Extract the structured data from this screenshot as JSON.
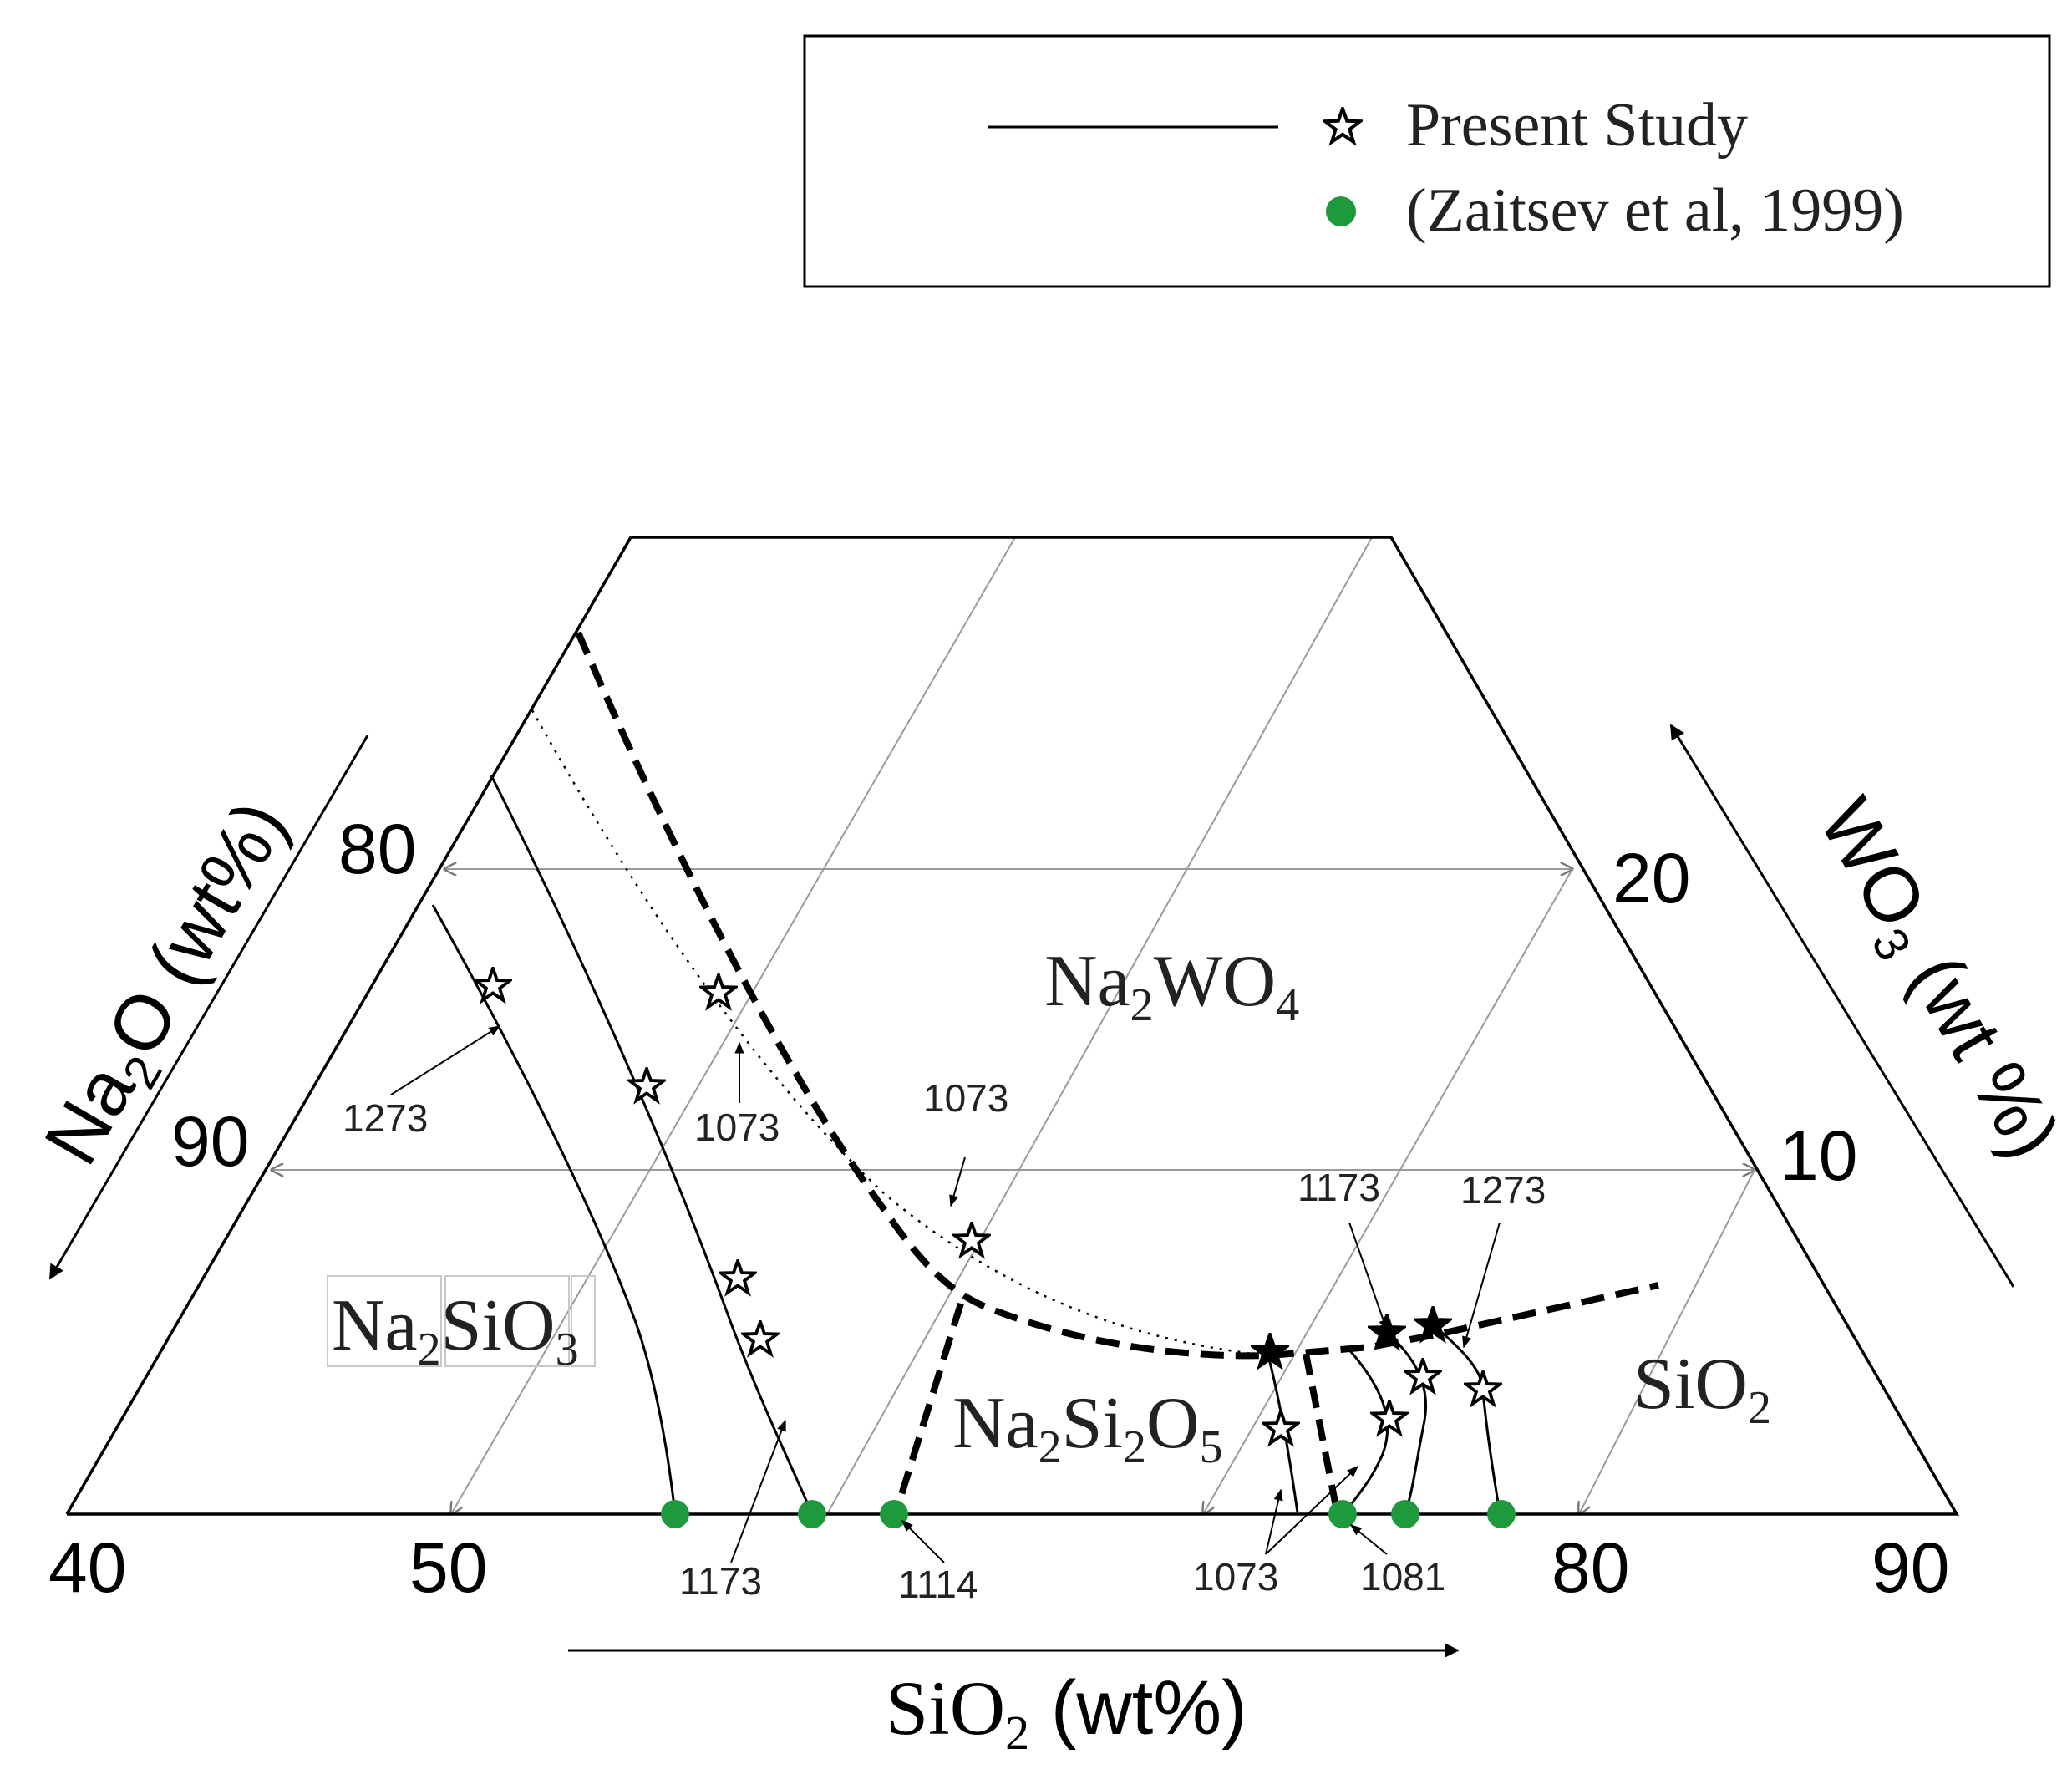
{
  "legend": {
    "present_study": "Present Study",
    "zaitsev": "(Zaitsev et al, 1999)",
    "colors": {
      "zaitsev_marker": "#1e9a3c",
      "line": "#000000",
      "grid": "#9a9a9a"
    }
  },
  "axes": {
    "bottom": {
      "label_main": "SiO",
      "label_sub": "2",
      "label_units": " (wt%)",
      "ticks": [
        "40",
        "50",
        "80",
        "90"
      ]
    },
    "left": {
      "label_main_a": "Na",
      "label_sub": "2",
      "label_main_b": "O (wt%)",
      "ticks": [
        "80",
        "90"
      ]
    },
    "right": {
      "label_main": "WO",
      "label_sub": "3",
      "label_units": " (wt %)",
      "ticks": [
        "20",
        "10"
      ]
    }
  },
  "phases": {
    "na2wo4": {
      "a": "Na",
      "s1": "2",
      "b": "WO",
      "s2": "4"
    },
    "na2sio3": {
      "a": "Na",
      "s1": "2",
      "b": "SiO",
      "s2": "3"
    },
    "na2si2o5": {
      "a": "Na",
      "s1": "2",
      "b": "Si",
      "s2": "2",
      "c": "O",
      "s3": "5"
    },
    "sio2": {
      "a": "SiO",
      "s1": "2"
    }
  },
  "temperatures": {
    "t1273_left": "1273",
    "t1073_a": "1073",
    "t1073_b": "1073",
    "t1173_bottom": "1173",
    "t1114": "1114",
    "t1073_bottom": "1073",
    "t1081": "1081",
    "t1173_right": "1173",
    "t1273_right": "1273"
  }
}
